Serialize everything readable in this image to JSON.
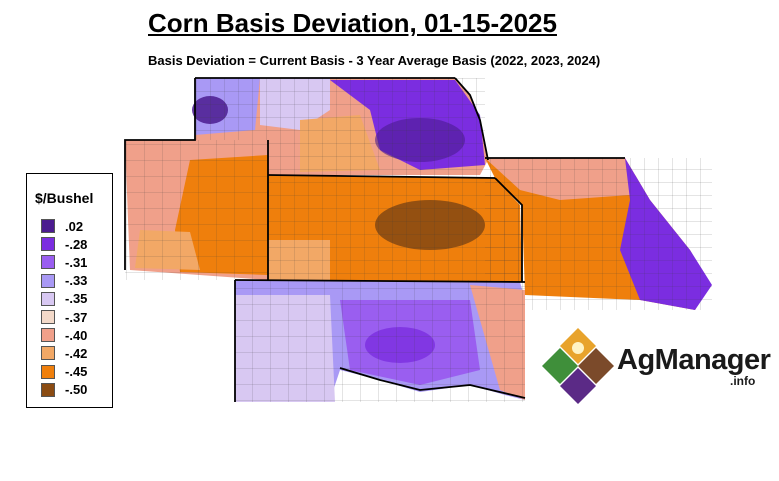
{
  "title": "Corn Basis Deviation, 01-15-2025",
  "subtitle": "Basis Deviation = Current Basis - 3 Year Average Basis (2022, 2023, 2024)",
  "legend": {
    "title": "$/Bushel",
    "items": [
      {
        "label": ".02",
        "color": "#4b1b8f"
      },
      {
        "label": "-.28",
        "color": "#7b2de0"
      },
      {
        "label": "-.31",
        "color": "#9a5ef0"
      },
      {
        "label": "-.33",
        "color": "#a999f5"
      },
      {
        "label": "-.35",
        "color": "#d8c8f2"
      },
      {
        "label": "-.37",
        "color": "#f3d9c9"
      },
      {
        "label": "-.40",
        "color": "#f0a08a"
      },
      {
        "label": "-.42",
        "color": "#f2a866"
      },
      {
        "label": "-.45",
        "color": "#ef7f0c"
      },
      {
        "label": "-.50",
        "color": "#8a4b12"
      }
    ]
  },
  "logo": {
    "brand": "AgManager",
    "suffix": ".info"
  }
}
